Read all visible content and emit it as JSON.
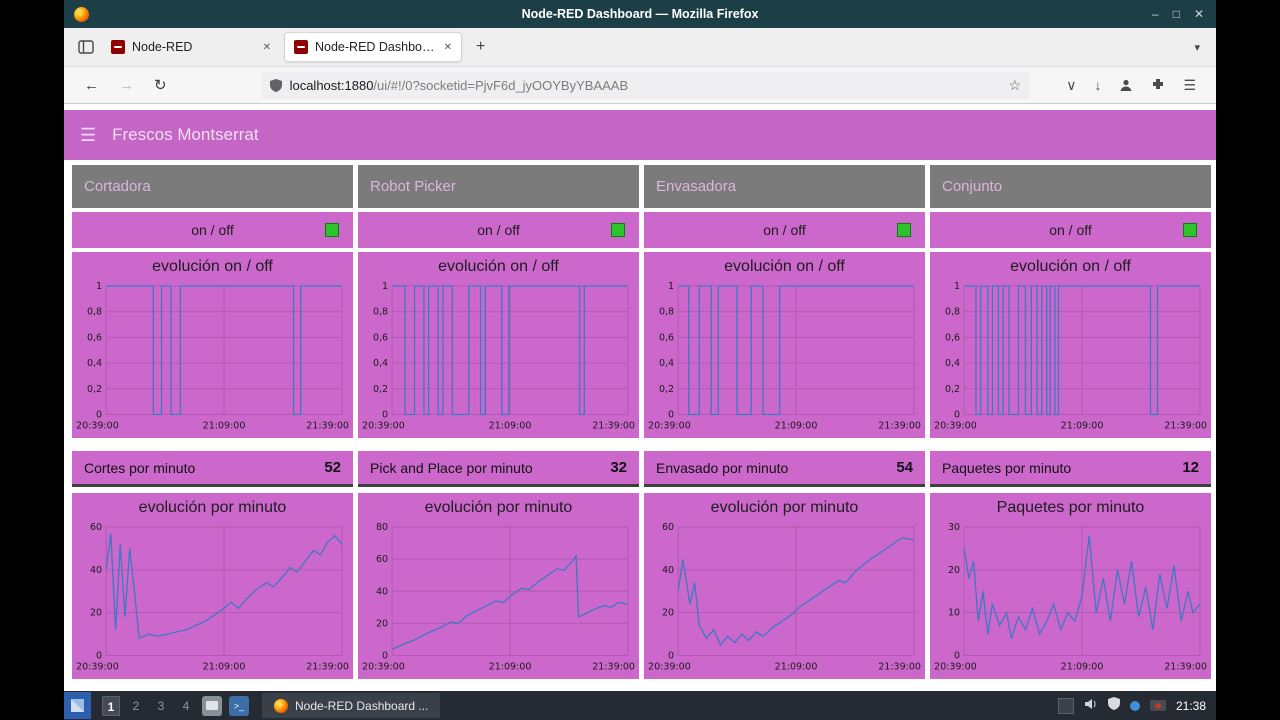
{
  "colors": {
    "titlebar": "#1c3f47",
    "accent": "#c565c5",
    "card": "#cc68cc",
    "grid": "#b258b2",
    "line": "#3f78c2",
    "led": "#2bc42d",
    "group_header": "#7b7b7b",
    "group_header_text": "#ddb4dd"
  },
  "icons": {
    "minimize": "–",
    "maximize": "□",
    "close": "✕",
    "back": "←",
    "forward": "→",
    "reload": "↻",
    "star": "☆",
    "pocket": "∨",
    "download": "↓",
    "menu": "☰",
    "hamburger": "☰",
    "new_tab": "+",
    "tab_close": "✕",
    "list_tabs": "▾"
  },
  "window": {
    "title": "Node-RED Dashboard — Mozilla Firefox"
  },
  "tabbar": {
    "tabs": [
      {
        "label": "Node-RED"
      },
      {
        "label": "Node-RED Dashboard"
      }
    ]
  },
  "navbar": {
    "url_host": "localhost:1880",
    "url_path": "/ui/#!/0?socketid=PjvF6d_jyOOYByYBAAAB"
  },
  "dashboard": {
    "title": "Frescos Montserrat",
    "groups": [
      {
        "name": "Cortadora",
        "onoff": "on / off",
        "stat_label": "Cortes por minuto",
        "stat_value": "52"
      },
      {
        "name": "Robot Picker",
        "onoff": "on / off",
        "stat_label": "Pick and Place por minuto",
        "stat_value": "32"
      },
      {
        "name": "Envasadora",
        "onoff": "on / off",
        "stat_label": "Envasado por minuto",
        "stat_value": "54"
      },
      {
        "name": "Conjunto",
        "onoff": "on / off",
        "stat_label": "Paquetes por minuto",
        "stat_value": "12"
      }
    ]
  },
  "taskbar": {
    "workspaces": [
      "1",
      "2",
      "3",
      "4"
    ],
    "window_button": "Node-RED Dashboard ...",
    "clock": "21:38"
  },
  "chart_data": [
    {
      "type": "line",
      "title": "evolución on / off",
      "x_ticks": [
        "20:39:00",
        "21:09:00",
        "21:39:00"
      ],
      "y_ticks": [
        "1",
        "0,8",
        "0,6",
        "0,4",
        "0,2",
        "0"
      ],
      "ylim": [
        0,
        1
      ],
      "points": [
        [
          0,
          1
        ],
        [
          0.2,
          1
        ],
        [
          0.2,
          0
        ],
        [
          0.235,
          0
        ],
        [
          0.235,
          1
        ],
        [
          0.275,
          1
        ],
        [
          0.275,
          0
        ],
        [
          0.315,
          0
        ],
        [
          0.315,
          1
        ],
        [
          0.795,
          1
        ],
        [
          0.795,
          0
        ],
        [
          0.825,
          0
        ],
        [
          0.825,
          1
        ],
        [
          1,
          1
        ]
      ]
    },
    {
      "type": "line",
      "title": "evolución por minuto",
      "x_ticks": [
        "20:39:00",
        "21:09:00",
        "21:39:00"
      ],
      "y_ticks": [
        "60",
        "40",
        "20",
        "0"
      ],
      "ylim": [
        0,
        60
      ],
      "points": [
        [
          0,
          40
        ],
        [
          0.02,
          57
        ],
        [
          0.04,
          12
        ],
        [
          0.06,
          52
        ],
        [
          0.08,
          18
        ],
        [
          0.1,
          50
        ],
        [
          0.12,
          30
        ],
        [
          0.14,
          8
        ],
        [
          0.18,
          10
        ],
        [
          0.22,
          9
        ],
        [
          0.26,
          10
        ],
        [
          0.3,
          11
        ],
        [
          0.34,
          12
        ],
        [
          0.38,
          14
        ],
        [
          0.42,
          16
        ],
        [
          0.46,
          19
        ],
        [
          0.5,
          22
        ],
        [
          0.53,
          25
        ],
        [
          0.56,
          22
        ],
        [
          0.6,
          27
        ],
        [
          0.64,
          31
        ],
        [
          0.68,
          34
        ],
        [
          0.71,
          32
        ],
        [
          0.75,
          37
        ],
        [
          0.78,
          41
        ],
        [
          0.81,
          39
        ],
        [
          0.85,
          45
        ],
        [
          0.88,
          49
        ],
        [
          0.91,
          47
        ],
        [
          0.94,
          53
        ],
        [
          0.97,
          56
        ],
        [
          1,
          52
        ]
      ]
    },
    {
      "type": "line",
      "title": "evolución on / off",
      "x_ticks": [
        "20:39:00",
        "21:09:00",
        "21:39:00"
      ],
      "y_ticks": [
        "1",
        "0,8",
        "0,6",
        "0,4",
        "0,2",
        "0"
      ],
      "ylim": [
        0,
        1
      ],
      "points": [
        [
          0,
          1
        ],
        [
          0.055,
          1
        ],
        [
          0.055,
          0
        ],
        [
          0.095,
          0
        ],
        [
          0.095,
          1
        ],
        [
          0.135,
          1
        ],
        [
          0.135,
          0
        ],
        [
          0.155,
          0
        ],
        [
          0.155,
          1
        ],
        [
          0.195,
          1
        ],
        [
          0.195,
          0
        ],
        [
          0.215,
          0
        ],
        [
          0.215,
          1
        ],
        [
          0.255,
          1
        ],
        [
          0.255,
          0
        ],
        [
          0.325,
          0
        ],
        [
          0.325,
          1
        ],
        [
          0.375,
          1
        ],
        [
          0.375,
          0
        ],
        [
          0.395,
          0
        ],
        [
          0.395,
          1
        ],
        [
          0.465,
          1
        ],
        [
          0.465,
          0
        ],
        [
          0.495,
          0
        ],
        [
          0.495,
          1
        ],
        [
          0.795,
          1
        ],
        [
          0.795,
          0
        ],
        [
          0.815,
          0
        ],
        [
          0.815,
          1
        ],
        [
          1,
          1
        ]
      ]
    },
    {
      "type": "line",
      "title": "evolución por minuto",
      "x_ticks": [
        "20:39:00",
        "21:09:00",
        "21:39:00"
      ],
      "y_ticks": [
        "80",
        "60",
        "40",
        "20",
        "0"
      ],
      "ylim": [
        0,
        80
      ],
      "points": [
        [
          0,
          4
        ],
        [
          0.05,
          7
        ],
        [
          0.1,
          10
        ],
        [
          0.15,
          14
        ],
        [
          0.2,
          17
        ],
        [
          0.25,
          21
        ],
        [
          0.28,
          20
        ],
        [
          0.32,
          25
        ],
        [
          0.36,
          28
        ],
        [
          0.4,
          31
        ],
        [
          0.44,
          34
        ],
        [
          0.47,
          33
        ],
        [
          0.51,
          38
        ],
        [
          0.55,
          42
        ],
        [
          0.58,
          41
        ],
        [
          0.62,
          46
        ],
        [
          0.66,
          50
        ],
        [
          0.7,
          54
        ],
        [
          0.73,
          53
        ],
        [
          0.76,
          58
        ],
        [
          0.78,
          62
        ],
        [
          0.79,
          24
        ],
        [
          0.82,
          26
        ],
        [
          0.86,
          29
        ],
        [
          0.9,
          31
        ],
        [
          0.93,
          30
        ],
        [
          0.96,
          33
        ],
        [
          1,
          32
        ]
      ]
    },
    {
      "type": "line",
      "title": "evolución on / off",
      "x_ticks": [
        "20:39:00",
        "21:09:00",
        "21:39:00"
      ],
      "y_ticks": [
        "1",
        "0,8",
        "0,6",
        "0,4",
        "0,2",
        "0"
      ],
      "ylim": [
        0,
        1
      ],
      "points": [
        [
          0,
          1
        ],
        [
          0.045,
          1
        ],
        [
          0.045,
          0
        ],
        [
          0.09,
          0
        ],
        [
          0.09,
          1
        ],
        [
          0.14,
          1
        ],
        [
          0.14,
          0
        ],
        [
          0.17,
          0
        ],
        [
          0.17,
          1
        ],
        [
          0.25,
          1
        ],
        [
          0.25,
          0
        ],
        [
          0.31,
          0
        ],
        [
          0.31,
          1
        ],
        [
          0.36,
          1
        ],
        [
          0.36,
          0
        ],
        [
          0.43,
          0
        ],
        [
          0.43,
          1
        ],
        [
          1,
          1
        ]
      ]
    },
    {
      "type": "line",
      "title": "evolución por minuto",
      "x_ticks": [
        "20:39:00",
        "21:09:00",
        "21:39:00"
      ],
      "y_ticks": [
        "60",
        "40",
        "20",
        "0"
      ],
      "ylim": [
        0,
        60
      ],
      "points": [
        [
          0,
          30
        ],
        [
          0.02,
          45
        ],
        [
          0.05,
          24
        ],
        [
          0.07,
          34
        ],
        [
          0.09,
          14
        ],
        [
          0.12,
          8
        ],
        [
          0.15,
          12
        ],
        [
          0.18,
          5
        ],
        [
          0.21,
          9
        ],
        [
          0.24,
          6
        ],
        [
          0.27,
          10
        ],
        [
          0.3,
          7
        ],
        [
          0.33,
          11
        ],
        [
          0.36,
          9
        ],
        [
          0.4,
          13
        ],
        [
          0.44,
          16
        ],
        [
          0.48,
          19
        ],
        [
          0.52,
          23
        ],
        [
          0.56,
          26
        ],
        [
          0.6,
          29
        ],
        [
          0.64,
          32
        ],
        [
          0.68,
          35
        ],
        [
          0.71,
          34
        ],
        [
          0.75,
          39
        ],
        [
          0.79,
          43
        ],
        [
          0.83,
          46
        ],
        [
          0.87,
          49
        ],
        [
          0.91,
          52
        ],
        [
          0.95,
          55
        ],
        [
          1,
          54
        ]
      ]
    },
    {
      "type": "line",
      "title": "evolución on / off",
      "x_ticks": [
        "20:39:00",
        "21:09:00",
        "21:39:00"
      ],
      "y_ticks": [
        "1",
        "0,8",
        "0,6",
        "0,4",
        "0,2",
        "0"
      ],
      "ylim": [
        0,
        1
      ],
      "points": [
        [
          0,
          1
        ],
        [
          0.05,
          1
        ],
        [
          0.05,
          0
        ],
        [
          0.07,
          0
        ],
        [
          0.07,
          1
        ],
        [
          0.1,
          1
        ],
        [
          0.1,
          0
        ],
        [
          0.12,
          0
        ],
        [
          0.12,
          1
        ],
        [
          0.145,
          1
        ],
        [
          0.145,
          0
        ],
        [
          0.165,
          0
        ],
        [
          0.165,
          1
        ],
        [
          0.19,
          1
        ],
        [
          0.19,
          0
        ],
        [
          0.23,
          0
        ],
        [
          0.23,
          1
        ],
        [
          0.26,
          1
        ],
        [
          0.26,
          0
        ],
        [
          0.285,
          0
        ],
        [
          0.285,
          1
        ],
        [
          0.31,
          1
        ],
        [
          0.31,
          0
        ],
        [
          0.33,
          0
        ],
        [
          0.33,
          1
        ],
        [
          0.35,
          1
        ],
        [
          0.35,
          0
        ],
        [
          0.365,
          0
        ],
        [
          0.365,
          1
        ],
        [
          0.385,
          1
        ],
        [
          0.385,
          0
        ],
        [
          0.4,
          0
        ],
        [
          0.4,
          1
        ],
        [
          0.79,
          1
        ],
        [
          0.79,
          0
        ],
        [
          0.82,
          0
        ],
        [
          0.82,
          1
        ],
        [
          1,
          1
        ]
      ]
    },
    {
      "type": "line",
      "title": "Paquetes por minuto",
      "x_ticks": [
        "20:39:00",
        "21:09:00",
        "21:39:00"
      ],
      "y_ticks": [
        "30",
        "20",
        "10",
        "0"
      ],
      "ylim": [
        0,
        30
      ],
      "points": [
        [
          0,
          25
        ],
        [
          0.02,
          18
        ],
        [
          0.04,
          22
        ],
        [
          0.06,
          8
        ],
        [
          0.08,
          15
        ],
        [
          0.1,
          5
        ],
        [
          0.12,
          12
        ],
        [
          0.15,
          7
        ],
        [
          0.18,
          10
        ],
        [
          0.2,
          4
        ],
        [
          0.23,
          9
        ],
        [
          0.26,
          6
        ],
        [
          0.29,
          11
        ],
        [
          0.32,
          5
        ],
        [
          0.35,
          8
        ],
        [
          0.38,
          12
        ],
        [
          0.41,
          6
        ],
        [
          0.44,
          10
        ],
        [
          0.47,
          8
        ],
        [
          0.5,
          14
        ],
        [
          0.53,
          28
        ],
        [
          0.56,
          10
        ],
        [
          0.59,
          18
        ],
        [
          0.62,
          8
        ],
        [
          0.65,
          20
        ],
        [
          0.68,
          12
        ],
        [
          0.71,
          22
        ],
        [
          0.74,
          9
        ],
        [
          0.77,
          16
        ],
        [
          0.8,
          6
        ],
        [
          0.83,
          19
        ],
        [
          0.86,
          11
        ],
        [
          0.89,
          21
        ],
        [
          0.92,
          8
        ],
        [
          0.95,
          15
        ],
        [
          0.97,
          10
        ],
        [
          1,
          12
        ]
      ]
    }
  ]
}
